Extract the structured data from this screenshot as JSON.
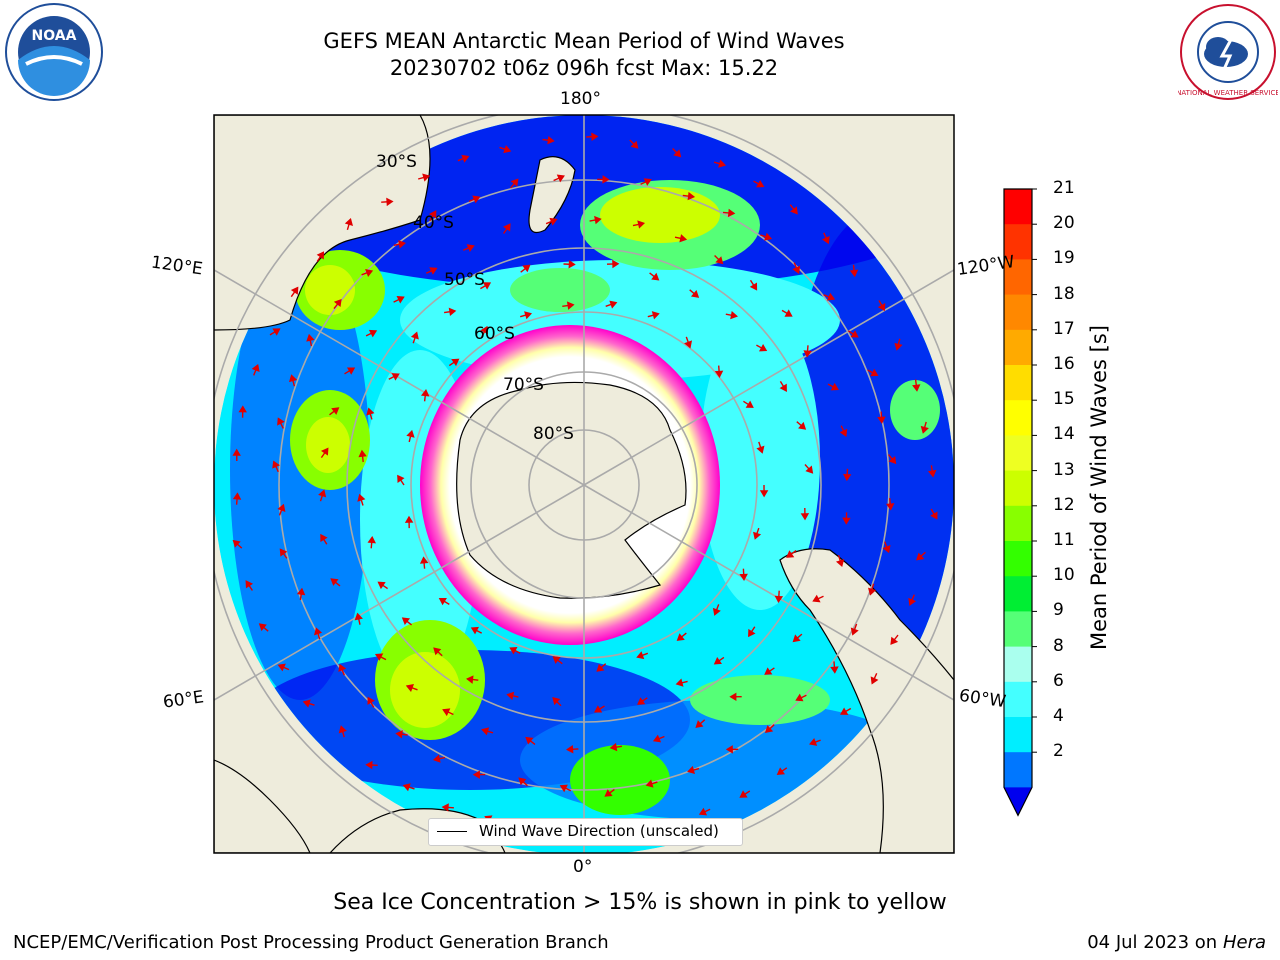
{
  "title": {
    "line1": "GEFS MEAN Antarctic Mean Period of Wind Waves",
    "line2": "20230702 t06z 096h fcst   Max: 15.22"
  },
  "logos": {
    "left": "noaa-logo",
    "right": "national-weather-service-logo",
    "left_text": "NOAA",
    "right_text": "NATIONAL WEATHER SERVICE"
  },
  "map": {
    "projection": "south-polar-stereographic",
    "longitude_labels": {
      "top": "180°",
      "bottom": "0°",
      "left_upper": "120°E",
      "left_lower": "60°E",
      "right_upper": "120°W",
      "right_lower": "60°W"
    },
    "latitude_labels": [
      "30°S",
      "40°S",
      "50°S",
      "60°S",
      "70°S",
      "80°S"
    ],
    "colors": {
      "land": "#eeecdc",
      "sea_ice_high": "#ffff00",
      "sea_ice_low": "#ff44cc",
      "arrow": "#e00000"
    },
    "legend": {
      "label": "Wind Wave Direction (unscaled)"
    }
  },
  "colorbar": {
    "title": "Mean Period of Wind Waves [s]",
    "ticks": [
      "21",
      "20",
      "19",
      "18",
      "17",
      "16",
      "15",
      "14",
      "13",
      "12",
      "11",
      "10",
      "9",
      "8",
      "6",
      "4",
      "2"
    ],
    "colors": [
      "#ff0000",
      "#ff3300",
      "#ff6600",
      "#ff8800",
      "#ffaa00",
      "#ffdd00",
      "#ffff00",
      "#eeff22",
      "#ccff00",
      "#88ff00",
      "#33ff00",
      "#00ee33",
      "#55ff77",
      "#aaffee",
      "#44ffff",
      "#00eeff",
      "#0077ff",
      "#0000ee"
    ]
  },
  "footnote": "Sea Ice Concentration > 15% is shown in pink to yellow",
  "credit_left": "NCEP/EMC/Verification Post Processing Product Generation Branch",
  "credit_right_date": "04 Jul 2023 on ",
  "credit_right_machine": "Hera"
}
